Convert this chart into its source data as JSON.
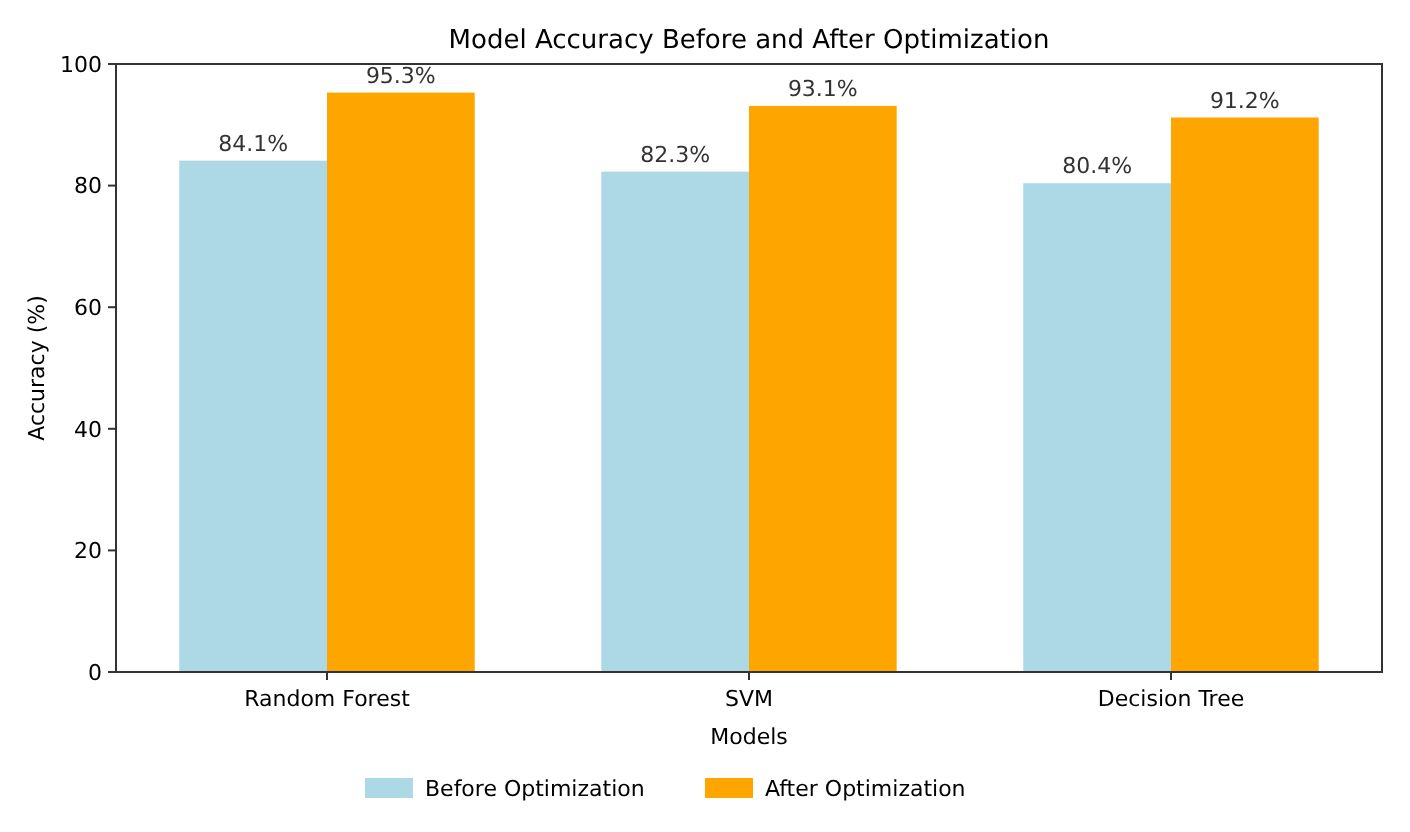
{
  "chart_data": {
    "type": "bar",
    "title": "Model Accuracy Before and After Optimization",
    "xlabel": "Models",
    "ylabel": "Accuracy (%)",
    "categories": [
      "Random Forest",
      "SVM",
      "Decision Tree"
    ],
    "series": [
      {
        "name": "Before Optimization",
        "color": "#add8e6",
        "values": [
          84.1,
          82.3,
          80.4
        ],
        "value_labels": [
          "84.1%",
          "82.3%",
          "80.4%"
        ]
      },
      {
        "name": "After Optimization",
        "color": "#ffa500",
        "values": [
          95.3,
          93.1,
          91.2
        ],
        "value_labels": [
          "95.3%",
          "93.1%",
          "91.2%"
        ]
      }
    ],
    "ylim": [
      0,
      100
    ],
    "yticks": [
      0,
      20,
      40,
      60,
      80,
      100
    ],
    "legend": "bottom",
    "grid": false
  }
}
